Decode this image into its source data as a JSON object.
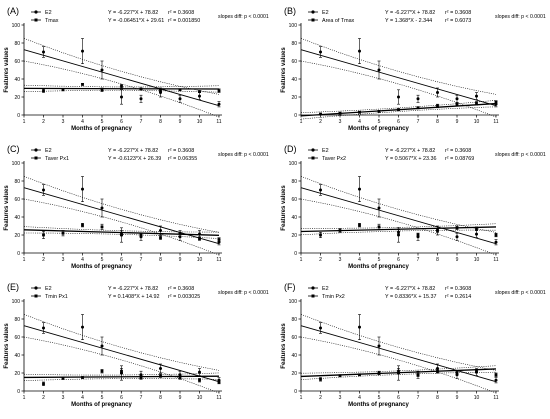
{
  "chart_data": [
    {
      "type": "scatter",
      "panel": "(A)",
      "xlabel": "Months of pregnancy",
      "ylabel": "Features values",
      "xlim": [
        1,
        11
      ],
      "ylim": [
        0,
        100
      ],
      "x_ticks": [
        1,
        2,
        3,
        4,
        5,
        6,
        7,
        8,
        9,
        10,
        11
      ],
      "y_ticks": [
        0,
        20,
        40,
        60,
        80,
        100
      ],
      "slopes_note": "slopes diff: p < 0.0001",
      "series": [
        {
          "name": "E2",
          "marker": "circle",
          "equation": "Y = -6.227*X + 78.82",
          "r2": "r² = 0.3608",
          "slope": -6.227,
          "intercept": 78.82,
          "points": [
            [
              2,
              70
            ],
            [
              4,
              71
            ],
            [
              5,
              50
            ],
            [
              6,
              20
            ],
            [
              7,
              18
            ],
            [
              8,
              25
            ],
            [
              9,
              18
            ],
            [
              10,
              21
            ],
            [
              11,
              12
            ]
          ],
          "errors": [
            6,
            14,
            10,
            8,
            4,
            5,
            4,
            4,
            3
          ]
        },
        {
          "name": "Tmax",
          "marker": "square",
          "equation": "Y = -0.06451*X + 29.61",
          "r2": "r² = 0.001850",
          "slope": -0.06451,
          "intercept": 29.61,
          "points": [
            [
              2,
              27
            ],
            [
              3,
              28
            ],
            [
              4,
              34
            ],
            [
              5,
              28
            ],
            [
              6,
              32
            ],
            [
              7,
              29
            ],
            [
              8,
              27
            ],
            [
              9,
              28
            ],
            [
              10,
              26
            ],
            [
              11,
              27
            ]
          ],
          "errors": [
            2,
            1,
            1,
            2,
            2,
            1,
            1,
            1,
            1,
            2
          ]
        }
      ]
    },
    {
      "type": "scatter",
      "panel": "(B)",
      "xlabel": "Months of pregnancy",
      "ylabel": "Features values",
      "xlim": [
        1,
        11
      ],
      "ylim": [
        0,
        100
      ],
      "x_ticks": [
        1,
        2,
        3,
        4,
        5,
        6,
        7,
        8,
        9,
        10,
        11
      ],
      "y_ticks": [
        0,
        20,
        40,
        60,
        80,
        100
      ],
      "slopes_note": "slopes diff: p < 0.0001",
      "series": [
        {
          "name": "E2",
          "marker": "circle",
          "equation": "Y = -6.227*X + 78.82",
          "r2": "r² = 0.3608",
          "slope": -6.227,
          "intercept": 78.82,
          "points": [
            [
              2,
              70
            ],
            [
              4,
              71
            ],
            [
              5,
              50
            ],
            [
              6,
              20
            ],
            [
              7,
              18
            ],
            [
              8,
              25
            ],
            [
              9,
              18
            ],
            [
              10,
              21
            ],
            [
              11,
              12
            ]
          ],
          "errors": [
            6,
            14,
            10,
            8,
            4,
            5,
            4,
            4,
            3
          ]
        },
        {
          "name": "Area of Tmax",
          "marker": "square",
          "equation": "Y = 1.368*X - 2.344",
          "r2": "r² = 0.6073",
          "slope": 1.368,
          "intercept": -2.344,
          "points": [
            [
              2,
              1
            ],
            [
              3,
              2
            ],
            [
              4,
              3
            ],
            [
              5,
              4
            ],
            [
              6,
              6
            ],
            [
              7,
              8
            ],
            [
              8,
              10
            ],
            [
              9,
              12
            ],
            [
              10,
              13
            ],
            [
              11,
              14
            ]
          ],
          "errors": [
            1,
            1,
            1,
            1,
            1,
            1,
            2,
            2,
            2,
            2
          ]
        }
      ]
    },
    {
      "type": "scatter",
      "panel": "(C)",
      "xlabel": "Months of pregnancy",
      "ylabel": "Features values",
      "xlim": [
        1,
        11
      ],
      "ylim": [
        0,
        100
      ],
      "x_ticks": [
        1,
        2,
        3,
        4,
        5,
        6,
        7,
        8,
        9,
        10,
        11
      ],
      "y_ticks": [
        0,
        20,
        40,
        60,
        80,
        100
      ],
      "slopes_note": "slopes diff: p < 0.0001",
      "series": [
        {
          "name": "E2",
          "marker": "circle",
          "equation": "Y = -6.227*X + 78.82",
          "r2": "r² = 0.3608",
          "slope": -6.227,
          "intercept": 78.82,
          "points": [
            [
              2,
              70
            ],
            [
              4,
              71
            ],
            [
              5,
              50
            ],
            [
              6,
              20
            ],
            [
              7,
              18
            ],
            [
              8,
              25
            ],
            [
              9,
              18
            ],
            [
              10,
              21
            ],
            [
              11,
              12
            ]
          ],
          "errors": [
            6,
            14,
            10,
            8,
            4,
            5,
            4,
            4,
            3
          ]
        },
        {
          "name": "Taver Px1",
          "marker": "square",
          "equation": "Y = -0.6123*X + 26.39",
          "r2": "r² = 0.06355",
          "slope": -0.6123,
          "intercept": 26.39,
          "points": [
            [
              2,
              20
            ],
            [
              3,
              22
            ],
            [
              4,
              31
            ],
            [
              5,
              29
            ],
            [
              6,
              22
            ],
            [
              7,
              20
            ],
            [
              8,
              17
            ],
            [
              9,
              22
            ],
            [
              10,
              16
            ],
            [
              11,
              15
            ]
          ],
          "errors": [
            4,
            3,
            2,
            3,
            3,
            2,
            2,
            3,
            2,
            2
          ]
        }
      ]
    },
    {
      "type": "scatter",
      "panel": "(D)",
      "xlabel": "Months of pregnancy",
      "ylabel": "Features values",
      "xlim": [
        1,
        11
      ],
      "ylim": [
        0,
        100
      ],
      "x_ticks": [
        1,
        2,
        3,
        4,
        5,
        6,
        7,
        8,
        9,
        10,
        11
      ],
      "y_ticks": [
        0,
        20,
        40,
        60,
        80,
        100
      ],
      "slopes_note": "slopes diff: p < 0.0001",
      "series": [
        {
          "name": "E2",
          "marker": "circle",
          "equation": "Y = -6.227*X + 78.82",
          "r2": "r² = 0.3608",
          "slope": -6.227,
          "intercept": 78.82,
          "points": [
            [
              2,
              70
            ],
            [
              4,
              71
            ],
            [
              5,
              50
            ],
            [
              6,
              20
            ],
            [
              7,
              18
            ],
            [
              8,
              25
            ],
            [
              9,
              18
            ],
            [
              10,
              21
            ],
            [
              11,
              12
            ]
          ],
          "errors": [
            6,
            14,
            10,
            8,
            4,
            5,
            4,
            4,
            3
          ]
        },
        {
          "name": "Taver Px2",
          "marker": "square",
          "equation": "Y = 0.5067*X + 23.36",
          "r2": "r² = 0.08769",
          "slope": 0.5067,
          "intercept": 23.36,
          "points": [
            [
              2,
              20
            ],
            [
              3,
              25
            ],
            [
              4,
              31
            ],
            [
              5,
              29
            ],
            [
              6,
              23
            ],
            [
              7,
              20
            ],
            [
              8,
              25
            ],
            [
              9,
              28
            ],
            [
              10,
              27
            ],
            [
              11,
              20
            ]
          ],
          "errors": [
            3,
            2,
            2,
            3,
            3,
            2,
            2,
            2,
            2,
            2
          ]
        }
      ]
    },
    {
      "type": "scatter",
      "panel": "(E)",
      "xlabel": "Months of pregnancy",
      "ylabel": "Features values",
      "xlim": [
        1,
        11
      ],
      "ylim": [
        0,
        100
      ],
      "x_ticks": [
        1,
        2,
        3,
        4,
        5,
        6,
        7,
        8,
        9,
        10,
        11
      ],
      "y_ticks": [
        0,
        20,
        40,
        60,
        80,
        100
      ],
      "slopes_note": "slopes diff: p < 0.0001",
      "series": [
        {
          "name": "E2",
          "marker": "circle",
          "equation": "Y = -6.227*X + 78.82",
          "r2": "r² = 0.3608",
          "slope": -6.227,
          "intercept": 78.82,
          "points": [
            [
              2,
              70
            ],
            [
              4,
              71
            ],
            [
              5,
              50
            ],
            [
              6,
              20
            ],
            [
              7,
              18
            ],
            [
              8,
              25
            ],
            [
              9,
              18
            ],
            [
              10,
              21
            ],
            [
              11,
              12
            ]
          ],
          "errors": [
            6,
            14,
            10,
            8,
            4,
            5,
            4,
            4,
            3
          ]
        },
        {
          "name": "Tmin Px1",
          "marker": "square",
          "equation": "Y = 0.1408*X + 14.92",
          "r2": "r² = 0.003025",
          "slope": 0.1408,
          "intercept": 14.92,
          "points": [
            [
              2,
              8
            ],
            [
              3,
              14
            ],
            [
              4,
              15
            ],
            [
              5,
              22
            ],
            [
              6,
              22
            ],
            [
              7,
              15
            ],
            [
              8,
              17
            ],
            [
              9,
              15
            ],
            [
              10,
              12
            ],
            [
              11,
              10
            ]
          ],
          "errors": [
            2,
            1,
            1,
            2,
            3,
            2,
            2,
            2,
            2,
            2
          ]
        }
      ]
    },
    {
      "type": "scatter",
      "panel": "(F)",
      "xlabel": "Months of pregnancy",
      "ylabel": "Features values",
      "xlim": [
        1,
        11
      ],
      "ylim": [
        0,
        100
      ],
      "x_ticks": [
        1,
        2,
        3,
        4,
        5,
        6,
        7,
        8,
        9,
        10,
        11
      ],
      "y_ticks": [
        0,
        20,
        40,
        60,
        80,
        100
      ],
      "slopes_note": "slopes diff: p < 0.0001",
      "series": [
        {
          "name": "E2",
          "marker": "circle",
          "equation": "Y = -6.227*X + 78.82",
          "r2": "r² = 0.3608",
          "slope": -6.227,
          "intercept": 78.82,
          "points": [
            [
              2,
              70
            ],
            [
              4,
              71
            ],
            [
              5,
              50
            ],
            [
              6,
              20
            ],
            [
              7,
              18
            ],
            [
              8,
              25
            ],
            [
              9,
              18
            ],
            [
              10,
              21
            ],
            [
              11,
              12
            ]
          ],
          "errors": [
            6,
            14,
            10,
            8,
            4,
            5,
            4,
            4,
            3
          ]
        },
        {
          "name": "Tmin Px2",
          "marker": "square",
          "equation": "Y = 0.8336*X + 15.37",
          "r2": "r² = 0.2614",
          "slope": 0.8336,
          "intercept": 15.37,
          "points": [
            [
              2,
              13
            ],
            [
              3,
              17
            ],
            [
              4,
              18
            ],
            [
              5,
              20
            ],
            [
              6,
              22
            ],
            [
              7,
              18
            ],
            [
              8,
              22
            ],
            [
              9,
              20
            ],
            [
              10,
              22
            ],
            [
              11,
              18
            ]
          ],
          "errors": [
            2,
            1,
            1,
            2,
            3,
            2,
            2,
            2,
            2,
            2
          ]
        }
      ]
    }
  ]
}
